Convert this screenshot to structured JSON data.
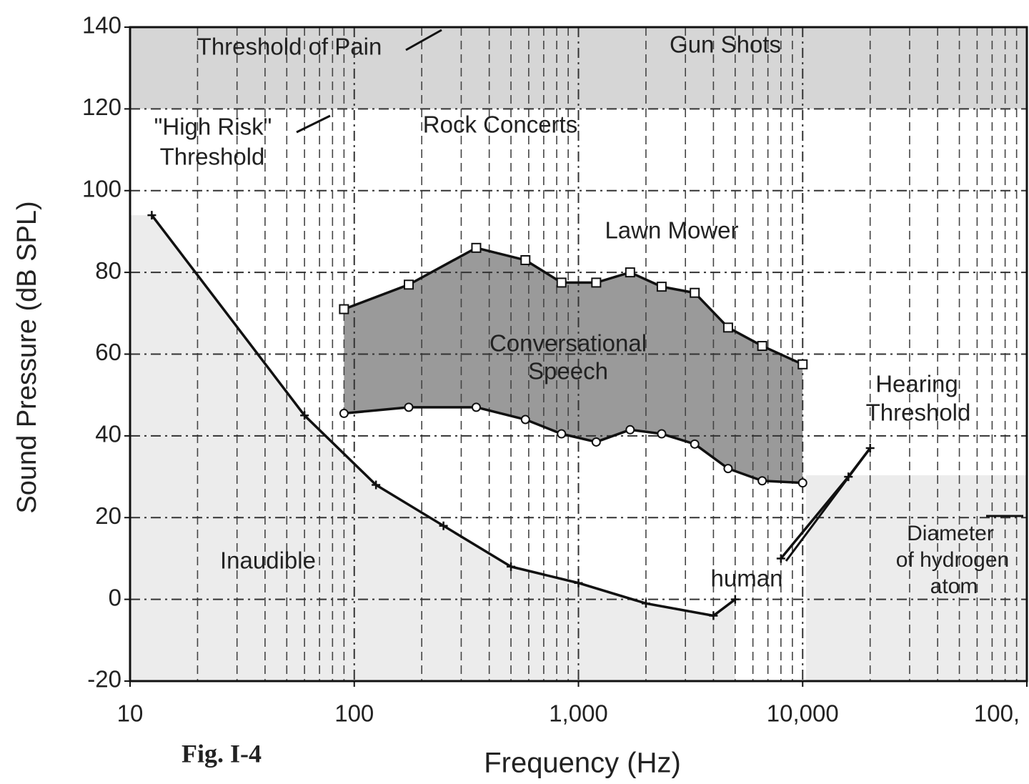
{
  "chart_data": {
    "type": "line",
    "caption": "Fig. I-4",
    "xlabel": "Frequency (Hz)",
    "ylabel": "Sound Pressure (dB SPL)",
    "xscale": "log",
    "xlim": [
      10,
      100000
    ],
    "xticks": [
      10,
      100,
      {
        "value": 1000,
        "label": "1,000"
      },
      {
        "value": 10000,
        "label": "10,000"
      },
      {
        "value": 100000,
        "label": "100,"
      }
    ],
    "ylim": [
      -20,
      140
    ],
    "yticks": [
      -20,
      0,
      20,
      40,
      60,
      80,
      100,
      120,
      140
    ],
    "grid": true,
    "series": [
      {
        "color": "#111",
        "marker": "cross",
        "x": [
          12.5,
          60,
          125,
          250,
          500,
          1000,
          2000,
          4000,
          5000,
          null,
          8000,
          16000,
          20000
        ],
        "values": [
          94,
          45,
          28,
          18,
          8,
          4,
          -1,
          -4,
          0,
          null,
          10,
          30,
          37
        ]
      },
      {
        "color": "#111",
        "marker": "square",
        "x": [
          90,
          175,
          350,
          580,
          840,
          1200,
          1700,
          2350,
          3300,
          4650,
          6600,
          10000
        ],
        "values": [
          71,
          77,
          86,
          83,
          77.5,
          77.5,
          80,
          76.5,
          75,
          66.5,
          62,
          57.5
        ]
      },
      {
        "color": "#111",
        "marker": "circle",
        "x": [
          90,
          175,
          350,
          580,
          840,
          1200,
          1700,
          2350,
          3300,
          4650,
          6600,
          10000
        ],
        "values": [
          45.5,
          47,
          47,
          44,
          40.5,
          38.5,
          41.5,
          40.5,
          38,
          32,
          29,
          28.5
        ]
      }
    ],
    "annotations": [
      "Threshold of Pain",
      "Gun Shots",
      "\"High Risk\"",
      "Threshold",
      "Rock Concerts",
      "Lawn Mower",
      "Conversational",
      "Speech",
      "Hearing",
      "Threshold",
      "Inaudible",
      "human",
      "Diameter",
      "of hydrogen",
      "atom"
    ]
  }
}
